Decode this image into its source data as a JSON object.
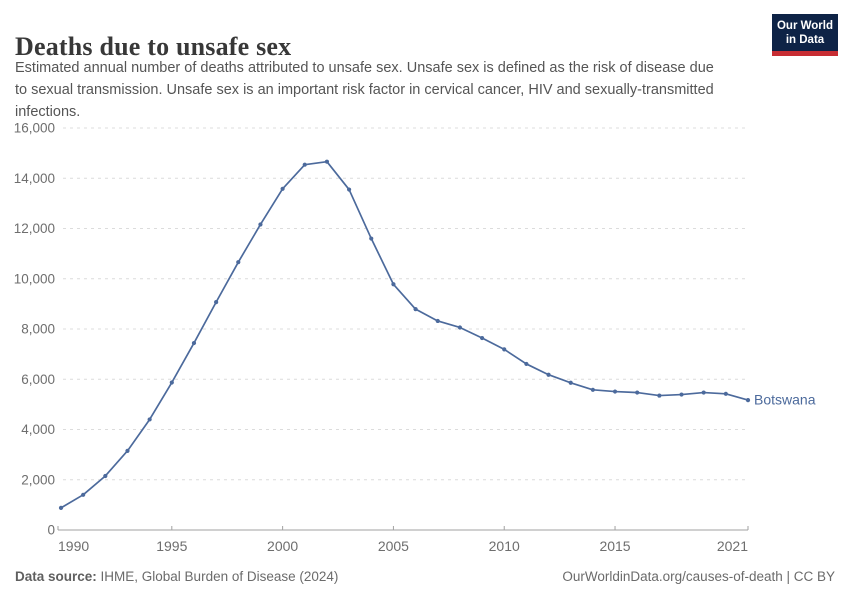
{
  "header": {
    "title": "Deaths due to unsafe sex",
    "subtitle_lines": [
      "Estimated annual number of deaths attributed to unsafe sex. Unsafe sex is defined as the risk of disease due",
      "to sexual transmission. Unsafe sex is an important risk factor in cervical cancer, HIV and sexually-transmitted",
      "infections."
    ],
    "logo": {
      "line1": "Our World",
      "line2": "in Data",
      "bg_color": "#0e2346",
      "bar_color": "#c72d33"
    }
  },
  "chart_data": {
    "type": "line",
    "title": "Deaths due to unsafe sex",
    "x": [
      1990,
      1991,
      1992,
      1993,
      1994,
      1995,
      1996,
      1997,
      1998,
      1999,
      2000,
      2001,
      2002,
      2003,
      2004,
      2005,
      2006,
      2007,
      2008,
      2009,
      2010,
      2011,
      2012,
      2013,
      2014,
      2015,
      2016,
      2017,
      2018,
      2019,
      2020,
      2021
    ],
    "series": [
      {
        "name": "Botswana",
        "color": "#4c6a9c",
        "values": [
          880,
          1400,
          2150,
          3150,
          4400,
          5870,
          7440,
          9070,
          10660,
          12160,
          13580,
          14540,
          14660,
          13550,
          11600,
          9780,
          8790,
          8320,
          8060,
          7640,
          7190,
          6610,
          6180,
          5860,
          5580,
          5510,
          5470,
          5350,
          5390,
          5470,
          5420,
          5170
        ]
      }
    ],
    "xlabel": "",
    "ylabel": "",
    "ylim": [
      0,
      16000
    ],
    "yticks": [
      0,
      2000,
      4000,
      6000,
      8000,
      10000,
      12000,
      14000,
      16000
    ],
    "xticks": [
      1990,
      1995,
      2000,
      2005,
      2010,
      2015,
      2021
    ],
    "grid": "horizontal-dashed",
    "legend_position": "end-of-line-label",
    "axis_color": "#a1a1a1",
    "grid_color": "#dcdcdc",
    "tick_label_color": "#6e6e6e"
  },
  "footer": {
    "source_label": "Data source:",
    "source_value": " IHME, Global Burden of Disease (2024)",
    "credit": "OurWorldinData.org/causes-of-death | CC BY"
  }
}
